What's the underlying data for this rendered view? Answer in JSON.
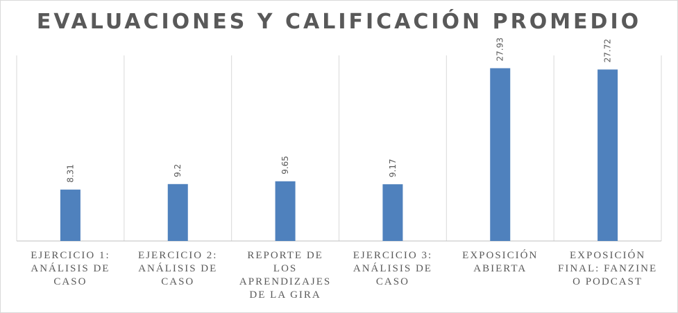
{
  "chart_data": {
    "type": "bar",
    "title": "EVALUACIONES Y CALIFICACIÓN PROMEDIO",
    "categories": [
      [
        "EJERCICIO 1:",
        "ANÁLISIS DE",
        "CASO"
      ],
      [
        "EJERCICIO 2:",
        "ANÁLISIS DE",
        "CASO"
      ],
      [
        "REPORTE DE",
        "LOS",
        "APRENDIZAJES",
        "DE LA GIRA"
      ],
      [
        "EJERCICIO 3:",
        "ANÁLISIS DE",
        "CASO"
      ],
      [
        "EXPOSICIÓN",
        "ABIERTA"
      ],
      [
        "EXPOSICIÓN",
        "FINAL: FANZINE",
        "O PODCAST"
      ]
    ],
    "values": [
      8.31,
      9.2,
      9.65,
      9.17,
      27.93,
      27.72
    ],
    "value_labels": [
      "8.31",
      "9.2",
      "9.65",
      "9.17",
      "27.93",
      "27.72"
    ],
    "ylim": [
      0,
      30
    ],
    "bar_color": "#4f81bd",
    "grid": "vertical",
    "legend": "none"
  }
}
